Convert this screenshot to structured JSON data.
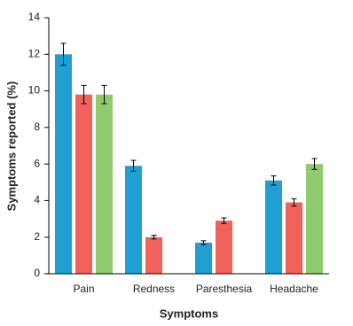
{
  "chart_data": {
    "type": "bar",
    "xlabel": "Symptoms",
    "ylabel": "Symptoms reported (%)",
    "categories": [
      "Pain",
      "Redness",
      "Paresthesia",
      "Headache"
    ],
    "series": [
      {
        "color": "#1f9fd2",
        "values": [
          12,
          5.9,
          1.7,
          5.1
        ],
        "errors": [
          0.6,
          0.3,
          0.1,
          0.25
        ]
      },
      {
        "color": "#f0625a",
        "values": [
          9.8,
          2.0,
          2.9,
          3.9
        ],
        "errors": [
          0.5,
          0.1,
          0.15,
          0.2
        ]
      },
      {
        "color": "#8fca6c",
        "values": [
          9.8,
          null,
          null,
          6.0
        ],
        "errors": [
          0.5,
          null,
          null,
          0.3
        ]
      }
    ],
    "ylim": [
      0,
      14
    ],
    "yticks": [
      0,
      2,
      4,
      6,
      8,
      10,
      12,
      14
    ],
    "grid": false
  }
}
